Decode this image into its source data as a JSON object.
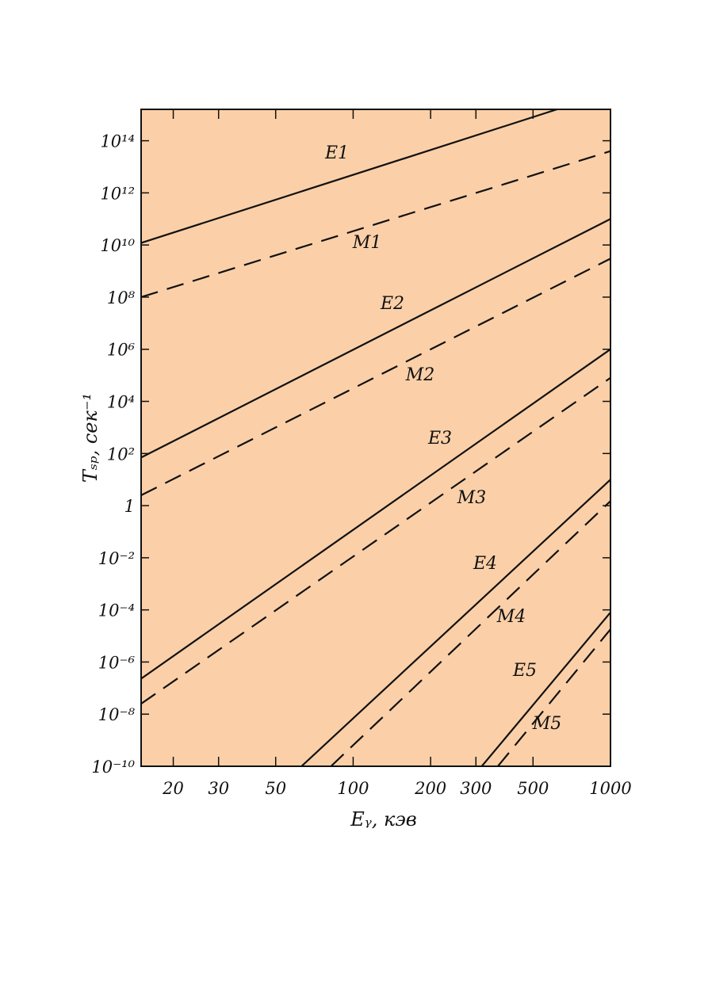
{
  "chart_data": {
    "type": "line",
    "x_label": "Eᵧ, кэв",
    "y_label": "Tₛₚ, сек⁻¹",
    "x_log": true,
    "y_log": true,
    "xlim": [
      15,
      1000
    ],
    "ylim": [
      1e-10,
      1600000000000000.0
    ],
    "xticks": [
      20,
      30,
      50,
      100,
      200,
      300,
      500,
      1000
    ],
    "yticks": [
      {
        "value": 1e-10,
        "label": "10⁻¹⁰"
      },
      {
        "value": 1e-08,
        "label": "10⁻⁸"
      },
      {
        "value": 1e-06,
        "label": "10⁻⁶"
      },
      {
        "value": 0.0001,
        "label": "10⁻⁴"
      },
      {
        "value": 0.01,
        "label": "10⁻²"
      },
      1,
      {
        "value": 100,
        "label": "10²"
      },
      {
        "value": 10000,
        "label": "10⁴"
      },
      {
        "value": 1000000,
        "label": "10⁶"
      },
      {
        "value": 100000000,
        "label": "10⁸"
      },
      {
        "value": 10000000000,
        "label": "10¹⁰"
      },
      {
        "value": 1000000000000,
        "label": "10¹²"
      },
      {
        "value": 100000000000000,
        "label": "10¹⁴"
      }
    ],
    "background": "#fbd0a8",
    "color": "#111111",
    "series": [
      {
        "name": "E1",
        "style": "solid",
        "x": [
          15,
          620
        ],
        "values": [
          12000000000.0,
          1600000000000000.0
        ]
      },
      {
        "name": "M1",
        "style": "dashed",
        "x": [
          15,
          1000
        ],
        "values": [
          100000000.0,
          40000000000000.0
        ]
      },
      {
        "name": "E2",
        "style": "solid",
        "x": [
          15,
          1000
        ],
        "values": [
          70,
          100000000000.0
        ]
      },
      {
        "name": "M2",
        "style": "dashed",
        "x": [
          15,
          1000
        ],
        "values": [
          2.5,
          3000000000.0
        ]
      },
      {
        "name": "E3",
        "style": "solid",
        "x": [
          15,
          1000
        ],
        "values": [
          2.3e-07,
          1000000.0
        ]
      },
      {
        "name": "M3",
        "style": "dashed",
        "x": [
          15,
          1000
        ],
        "values": [
          2.5e-08,
          80000.0
        ]
      },
      {
        "name": "E4",
        "style": "solid",
        "x": [
          63,
          1000
        ],
        "values": [
          1e-10,
          10
        ]
      },
      {
        "name": "M4",
        "style": "dashed",
        "x": [
          82,
          1000
        ],
        "values": [
          1e-10,
          1.5
        ]
      },
      {
        "name": "E5",
        "style": "solid",
        "x": [
          316,
          1000
        ],
        "values": [
          1e-10,
          8e-05
        ]
      },
      {
        "name": "M5",
        "style": "dashed",
        "x": [
          365,
          1000
        ],
        "values": [
          1e-10,
          1.8e-05
        ]
      }
    ]
  }
}
